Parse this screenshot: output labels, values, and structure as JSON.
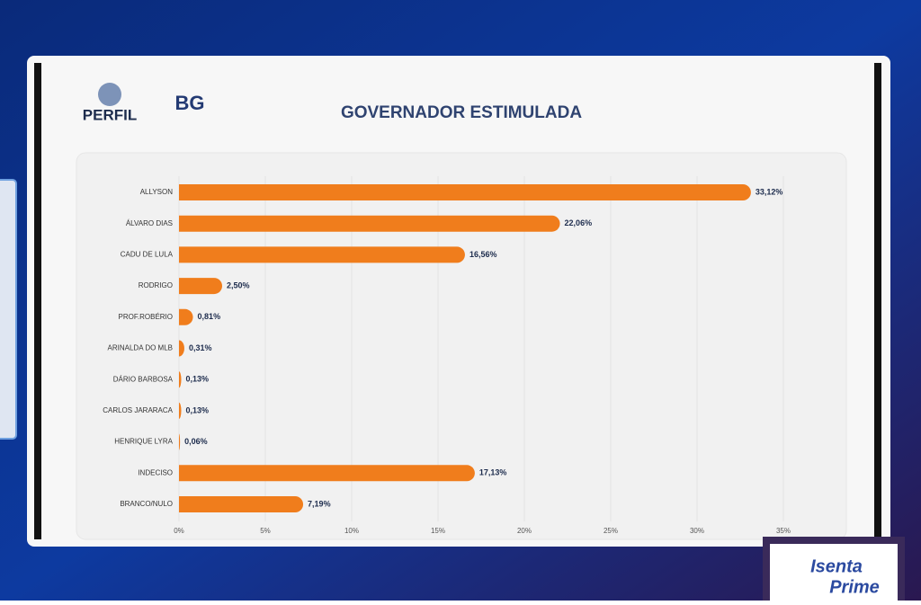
{
  "logos": {
    "perfil": "PERFIL",
    "bg": "BG"
  },
  "overlay": {
    "brand_top": "Isenta",
    "brand_bottom": "Prime"
  },
  "chart_data": {
    "type": "bar",
    "orientation": "horizontal",
    "title": "GOVERNADOR ESTIMULADA",
    "categories": [
      "ALLYSON",
      "ÁLVARO DIAS",
      "CADU DE LULA",
      "RODRIGO",
      "PROF.ROBÉRIO",
      "ARINALDA DO MLB",
      "DÁRIO BARBOSA",
      "CARLOS JARARACA",
      "HENRIQUE LYRA",
      "INDECISO",
      "BRANCO/NULO"
    ],
    "values": [
      33.12,
      22.06,
      16.56,
      2.5,
      0.81,
      0.31,
      0.13,
      0.13,
      0.06,
      17.13,
      7.19
    ],
    "value_labels": [
      "33,12%",
      "22,06%",
      "16,56%",
      "2,50%",
      "0,81%",
      "0,31%",
      "0,13%",
      "0,13%",
      "0,06%",
      "17,13%",
      "7,19%"
    ],
    "color": "#f07d1c",
    "xlim": [
      0,
      35
    ],
    "xticks": [
      {
        "value": 0,
        "label": "0%"
      },
      {
        "value": 5,
        "label": "5%"
      },
      {
        "value": 10,
        "label": "10%"
      },
      {
        "value": 15,
        "label": "15%"
      },
      {
        "value": 20,
        "label": "20%"
      },
      {
        "value": 25,
        "label": "25%"
      },
      {
        "value": 30,
        "label": "30%"
      },
      {
        "value": 35,
        "label": "35%"
      }
    ],
    "grid": true
  }
}
